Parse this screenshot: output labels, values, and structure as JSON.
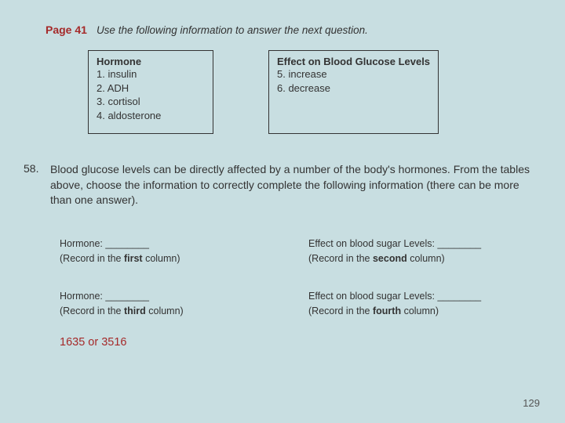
{
  "page_label": "Page 41",
  "instruction": "Use the following information to answer the next question.",
  "box_left": {
    "title": "Hormone",
    "items": [
      "1. insulin",
      "2. ADH",
      "3. cortisol",
      "4. aldosterone"
    ]
  },
  "box_right": {
    "title": "Effect on Blood Glucose Levels",
    "items": [
      "5. increase",
      "6. decrease"
    ]
  },
  "question_number": "58.",
  "question_text": "Blood glucose levels can be directly affected by a number of the body's hormones. From the tables above, choose the information to correctly complete the following information (there can be more than one answer).",
  "grid": [
    {
      "label": "Hormone: ________",
      "sub_pre": "(Record in the ",
      "sub_bold": "first",
      "sub_post": " column)"
    },
    {
      "label": "Effect on blood sugar Levels:  ________",
      "sub_pre": "(Record in the ",
      "sub_bold": "second",
      "sub_post": " column)"
    },
    {
      "label": "Hormone: ________",
      "sub_pre": "(Record in the ",
      "sub_bold": "third",
      "sub_post": " column)"
    },
    {
      "label": "Effect on blood sugar Levels:  ________",
      "sub_pre": "(Record in the ",
      "sub_bold": "fourth",
      "sub_post": " column)"
    }
  ],
  "answer_key": "1635 or 3516",
  "page_number": "129",
  "colors": {
    "background": "#c8dee1",
    "accent": "#a52a2a",
    "text": "#333333"
  }
}
